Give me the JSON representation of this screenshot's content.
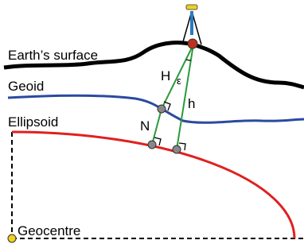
{
  "labels": {
    "surface": "Earth’s surface",
    "geoid": "Geoid",
    "ellipsoid": "Ellipsoid",
    "H": "H",
    "epsilon": "ε",
    "h": "h",
    "N": "N",
    "geocentre": "Geocentre"
  }
}
